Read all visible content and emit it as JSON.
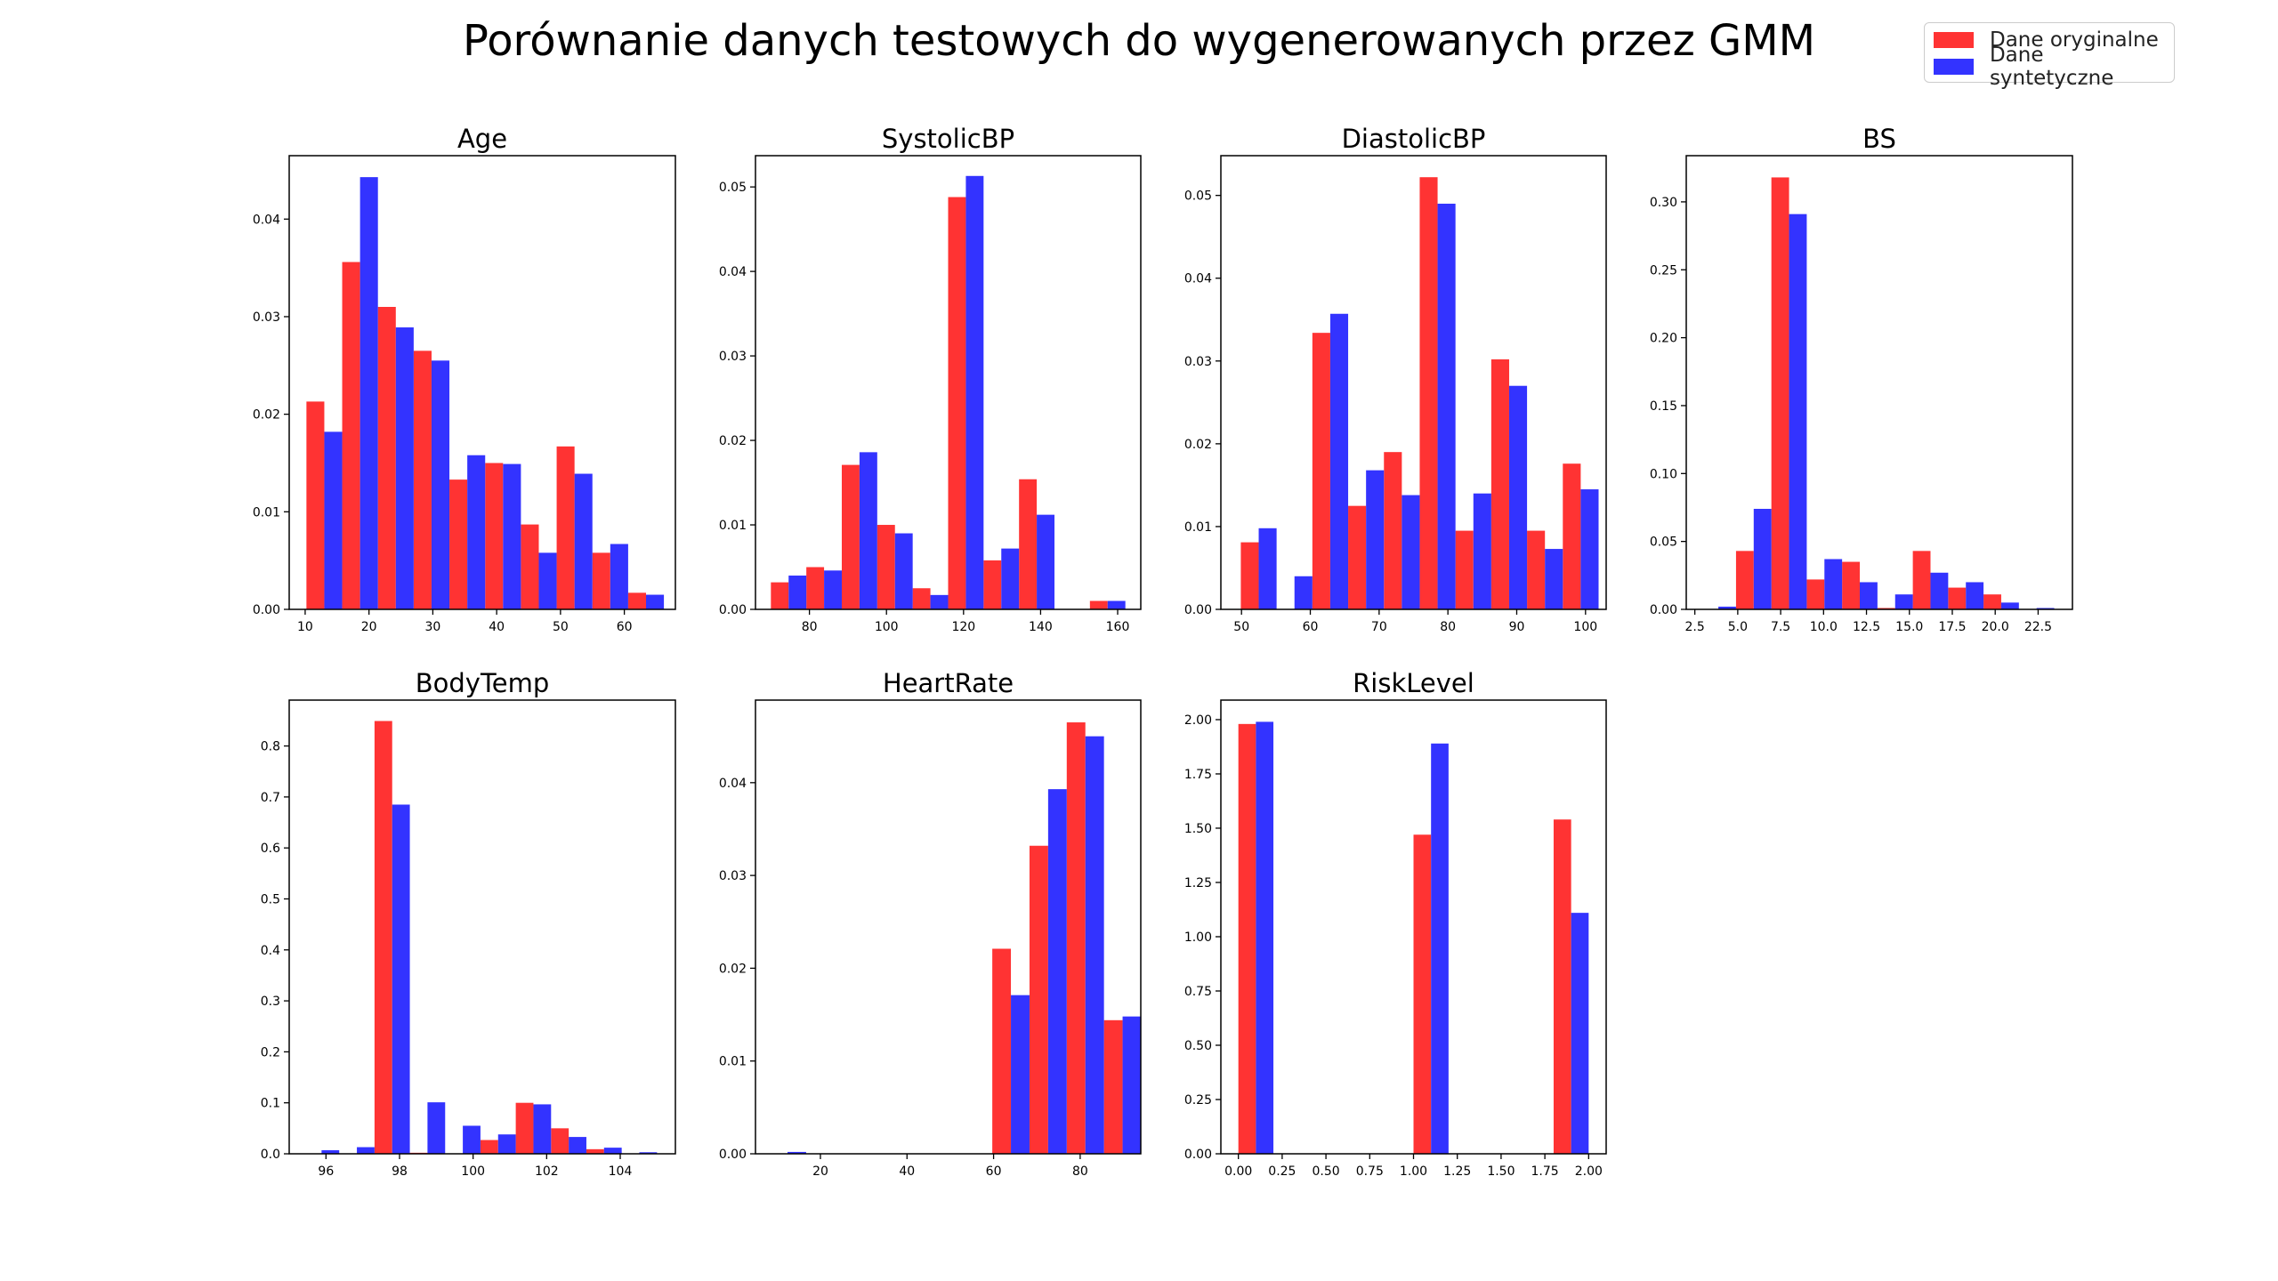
{
  "figure": {
    "title": "Porównanie danych testowych do wygenerowanych przez GMM"
  },
  "legend": {
    "placement": "top-right",
    "entries": [
      {
        "label": "Dane oryginalne",
        "color": "#ff3333"
      },
      {
        "label": "Dane syntetyczne",
        "color": "#3333ff"
      }
    ]
  },
  "colors": {
    "original": "#ff3333",
    "synthetic": "#3333ff",
    "axis": "#000000"
  },
  "chart_data": [
    {
      "type": "bar",
      "title": "Age",
      "xlim": [
        7.5,
        68
      ],
      "ylim": [
        0,
        0.0465
      ],
      "xticks": [
        10,
        20,
        30,
        40,
        50,
        60
      ],
      "xtick_labels": [
        "10",
        "20",
        "30",
        "40",
        "50",
        "60"
      ],
      "yticks": [
        0,
        0.01,
        0.02,
        0.03,
        0.04
      ],
      "ytick_labels": [
        "0.00",
        "0.01",
        "0.02",
        "0.03",
        "0.04"
      ],
      "bin_width": 5.6,
      "x": [
        13,
        18.6,
        24.2,
        29.8,
        35.4,
        41,
        46.6,
        52.2,
        57.8,
        63.4
      ],
      "series": [
        {
          "name": "Dane oryginalne",
          "values": [
            0.0213,
            0.0356,
            0.031,
            0.0265,
            0.0133,
            0.015,
            0.0087,
            0.0167,
            0.0058,
            0.0017
          ]
        },
        {
          "name": "Dane syntetyczne",
          "values": [
            0.0182,
            0.0443,
            0.0289,
            0.0255,
            0.0158,
            0.0149,
            0.0058,
            0.0139,
            0.0067,
            0.0015
          ]
        }
      ]
    },
    {
      "type": "bar",
      "title": "SystolicBP",
      "xlim": [
        66,
        166
      ],
      "ylim": [
        0,
        0.0537
      ],
      "xticks": [
        80,
        100,
        120,
        140,
        160
      ],
      "xtick_labels": [
        "80",
        "100",
        "120",
        "140",
        "160"
      ],
      "yticks": [
        0,
        0.01,
        0.02,
        0.03,
        0.04,
        0.05
      ],
      "ytick_labels": [
        "0.00",
        "0.01",
        "0.02",
        "0.03",
        "0.04",
        "0.05"
      ],
      "bin_width": 9.2,
      "x": [
        74.6,
        83.8,
        93,
        102.2,
        111.4,
        120.6,
        129.8,
        139,
        148.2,
        157.4
      ],
      "series": [
        {
          "name": "Dane oryginalne",
          "values": [
            0.0032,
            0.005,
            0.0171,
            0.01,
            0.0025,
            0.0488,
            0.0058,
            0.0154,
            0,
            0.001
          ]
        },
        {
          "name": "Dane syntetyczne",
          "values": [
            0.004,
            0.0046,
            0.0186,
            0.009,
            0.0017,
            0.0513,
            0.0072,
            0.0112,
            0,
            0.001
          ]
        }
      ]
    },
    {
      "type": "bar",
      "title": "DiastolicBP",
      "xlim": [
        47,
        103
      ],
      "ylim": [
        0,
        0.0548
      ],
      "xticks": [
        50,
        60,
        70,
        80,
        90,
        100
      ],
      "xtick_labels": [
        "50",
        "60",
        "70",
        "80",
        "90",
        "100"
      ],
      "yticks": [
        0,
        0.01,
        0.02,
        0.03,
        0.04,
        0.05
      ],
      "ytick_labels": [
        "0.00",
        "0.01",
        "0.02",
        "0.03",
        "0.04",
        "0.05"
      ],
      "bin_width": 5.2,
      "x": [
        52.5,
        57.7,
        62.9,
        68.1,
        73.3,
        78.5,
        83.7,
        88.9,
        94.1,
        99.3
      ],
      "series": [
        {
          "name": "Dane oryginalne",
          "values": [
            0.0081,
            0,
            0.0334,
            0.0125,
            0.019,
            0.0522,
            0.0095,
            0.0302,
            0.0095,
            0.0176
          ]
        },
        {
          "name": "Dane syntetyczne",
          "values": [
            0.0098,
            0.004,
            0.0357,
            0.0168,
            0.0138,
            0.049,
            0.014,
            0.027,
            0.0073,
            0.0145
          ]
        }
      ]
    },
    {
      "type": "bar",
      "title": "BS",
      "xlim": [
        2,
        24.5
      ],
      "ylim": [
        0,
        0.334
      ],
      "xticks": [
        2.5,
        5,
        7.5,
        10,
        12.5,
        15,
        17.5,
        20,
        22.5
      ],
      "xtick_labels": [
        "2.5",
        "5.0",
        "7.5",
        "10.0",
        "12.5",
        "15.0",
        "17.5",
        "20.0",
        "22.5"
      ],
      "yticks": [
        0,
        0.05,
        0.1,
        0.15,
        0.2,
        0.25,
        0.3
      ],
      "ytick_labels": [
        "0.00",
        "0.05",
        "0.10",
        "0.15",
        "0.20",
        "0.25",
        "0.30"
      ],
      "bin_width": 2.06,
      "x": [
        3.87,
        5.93,
        7.99,
        10.05,
        12.11,
        14.17,
        16.23,
        18.29,
        20.35,
        22.41
      ],
      "series": [
        {
          "name": "Dane oryginalne",
          "values": [
            0,
            0.043,
            0.318,
            0.022,
            0.035,
            0.001,
            0.043,
            0.016,
            0.011,
            0
          ]
        },
        {
          "name": "Dane syntetyczne",
          "values": [
            0.002,
            0.074,
            0.291,
            0.037,
            0.02,
            0.011,
            0.027,
            0.02,
            0.005,
            0.001
          ]
        }
      ]
    },
    {
      "type": "bar",
      "title": "BodyTemp",
      "xlim": [
        95,
        105.5
      ],
      "ylim": [
        0,
        0.89
      ],
      "xticks": [
        96,
        98,
        100,
        102,
        104
      ],
      "xtick_labels": [
        "96",
        "98",
        "100",
        "102",
        "104"
      ],
      "yticks": [
        0,
        0.1,
        0.2,
        0.3,
        0.4,
        0.5,
        0.6,
        0.7,
        0.8
      ],
      "ytick_labels": [
        "0.0",
        "0.1",
        "0.2",
        "0.3",
        "0.4",
        "0.5",
        "0.6",
        "0.7",
        "0.8"
      ],
      "bin_width": 0.96,
      "x": [
        95.88,
        96.84,
        97.8,
        98.76,
        99.72,
        100.68,
        101.64,
        102.6,
        103.56,
        104.52
      ],
      "series": [
        {
          "name": "Dane oryginalne",
          "values": [
            0,
            0,
            0.849,
            0.002,
            0,
            0.027,
            0.1,
            0.05,
            0.009,
            0
          ]
        },
        {
          "name": "Dane syntetyczne",
          "values": [
            0.007,
            0.013,
            0.685,
            0.101,
            0.055,
            0.038,
            0.097,
            0.033,
            0.012,
            0.003
          ]
        }
      ]
    },
    {
      "type": "bar",
      "title": "HeartRate",
      "xlim": [
        5,
        94
      ],
      "ylim": [
        0,
        0.0489
      ],
      "xticks": [
        20,
        40,
        60,
        80
      ],
      "xtick_labels": [
        "20",
        "40",
        "60",
        "80"
      ],
      "yticks": [
        0,
        0.01,
        0.02,
        0.03,
        0.04
      ],
      "ytick_labels": [
        "0.00",
        "0.01",
        "0.02",
        "0.03",
        "0.04"
      ],
      "bin_width": 8.6,
      "x": [
        12.4,
        21,
        29.6,
        38.2,
        46.8,
        55.4,
        64,
        72.6,
        81.2,
        89.8
      ],
      "series": [
        {
          "name": "Dane oryginalne",
          "values": [
            0,
            0,
            0,
            0,
            0,
            0,
            0.0221,
            0.0332,
            0.0465,
            0.0144
          ]
        },
        {
          "name": "Dane syntetyczne",
          "values": [
            0.0002,
            0,
            0,
            0,
            0,
            0,
            0.0171,
            0.0393,
            0.045,
            0.0148
          ]
        }
      ]
    },
    {
      "type": "bar",
      "title": "RiskLevel",
      "xlim": [
        -0.1,
        2.1
      ],
      "ylim": [
        0,
        2.09
      ],
      "xticks": [
        0,
        0.25,
        0.5,
        0.75,
        1,
        1.25,
        1.5,
        1.75,
        2
      ],
      "xtick_labels": [
        "0.00",
        "0.25",
        "0.50",
        "0.75",
        "1.00",
        "1.25",
        "1.50",
        "1.75",
        "2.00"
      ],
      "yticks": [
        0,
        0.25,
        0.5,
        0.75,
        1,
        1.25,
        1.5,
        1.75,
        2
      ],
      "ytick_labels": [
        "0.00",
        "0.25",
        "0.50",
        "0.75",
        "1.00",
        "1.25",
        "1.50",
        "1.75",
        "2.00"
      ],
      "bin_width": 0.2,
      "x": [
        0.1,
        0.3,
        0.5,
        0.7,
        0.9,
        1.1,
        1.3,
        1.5,
        1.7,
        1.9
      ],
      "series": [
        {
          "name": "Dane oryginalne",
          "values": [
            1.98,
            0,
            0,
            0,
            0,
            1.47,
            0,
            0,
            0,
            1.54
          ]
        },
        {
          "name": "Dane syntetyczne",
          "values": [
            1.99,
            0,
            0,
            0,
            0,
            1.89,
            0,
            0,
            0,
            1.11
          ]
        }
      ]
    }
  ]
}
